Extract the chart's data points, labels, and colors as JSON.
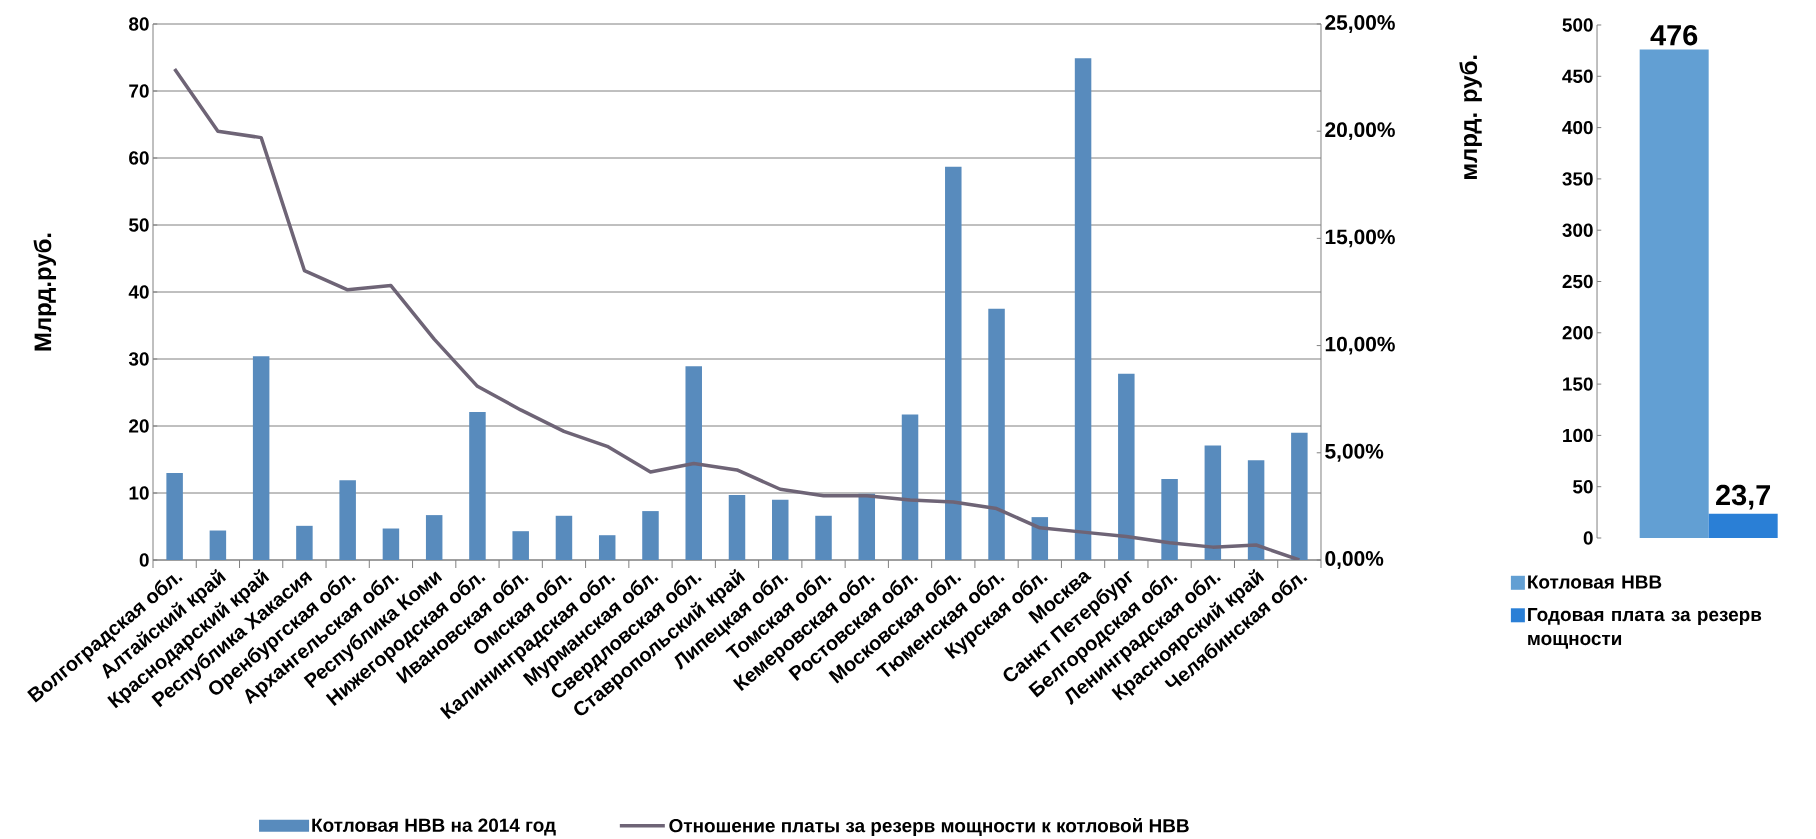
{
  "chart_data": [
    {
      "type": "bar",
      "ylabel": "Млрд.руб.",
      "categories": [
        "Волгоградская обл.",
        "Алтайский край",
        "Краснодарский край",
        "Республика Хакасия",
        "Оренбургская обл.",
        "Архангельская обл.",
        "Республика Коми",
        "Нижегородская обл.",
        "Ивановская обл.",
        "Омская обл.",
        "Калининградская обл.",
        "Мурманская обл.",
        "Свердловская обл.",
        "Ставропольский край",
        "Липецкая обл.",
        "Томская обл.",
        "Кемеровская обл.",
        "Ростовская обл.",
        "Московская обл.",
        "Тюменская обл.",
        "Курская обл.",
        "Москва",
        "Санкт Петербург",
        "Белгородская обл.",
        "Ленинградская обл.",
        "Красноярский край",
        "Челябинская обл."
      ],
      "series": [
        {
          "name": "Котловая НВВ на 2014 год",
          "color": "#588bbd",
          "values": [
            13.0,
            4.4,
            30.4,
            5.1,
            11.9,
            4.7,
            6.7,
            22.1,
            4.3,
            6.6,
            3.7,
            7.3,
            28.9,
            9.7,
            9.0,
            6.6,
            9.9,
            21.7,
            58.7,
            37.5,
            6.4,
            74.9,
            27.8,
            12.1,
            17.1,
            14.9,
            19.0
          ]
        },
        {
          "name": "Отношение платы за резерв мощности к котловой НВВ",
          "type": "line",
          "axis": "y2",
          "color": "#6e6476",
          "values": [
            22.9,
            20.0,
            19.7,
            13.5,
            12.6,
            12.8,
            10.3,
            8.1,
            7.0,
            6.0,
            5.3,
            4.1,
            4.5,
            4.2,
            3.3,
            3.0,
            3.0,
            2.8,
            2.7,
            2.4,
            1.5,
            1.3,
            1.1,
            0.8,
            0.6,
            0.7,
            0.0
          ]
        }
      ],
      "ylim": [
        0,
        80
      ],
      "yticks": [
        0,
        10,
        20,
        30,
        40,
        50,
        60,
        70,
        80
      ],
      "y2lim": [
        0,
        25
      ],
      "y2ticks": [
        {
          "value": 0,
          "label": "0,00%"
        },
        {
          "value": 5,
          "label": "5,00%"
        },
        {
          "value": 10,
          "label": "10,00%"
        },
        {
          "value": 15,
          "label": "15,00%"
        },
        {
          "value": 20,
          "label": "20,00%"
        },
        {
          "value": 25,
          "label": "25,00%"
        }
      ],
      "grid": "y",
      "legend": "bottom",
      "line_style": "solid",
      "marker": "none"
    },
    {
      "type": "bar",
      "ylabel": "млрд. руб.",
      "categories": [
        null
      ],
      "series": [
        {
          "name": "Котловая НВВ",
          "color": "#629fd3",
          "values": [
            476
          ],
          "value_labels": [
            "476"
          ]
        },
        {
          "name": "Годовая плата за резерв мощности",
          "color": "#2a7fd6",
          "values": [
            23.7
          ],
          "value_labels": [
            "23,7"
          ]
        }
      ],
      "ylim": [
        0,
        500
      ],
      "yticks": [
        0,
        50,
        100,
        150,
        200,
        250,
        300,
        350,
        400,
        450,
        500
      ],
      "legend": "bottom"
    }
  ]
}
